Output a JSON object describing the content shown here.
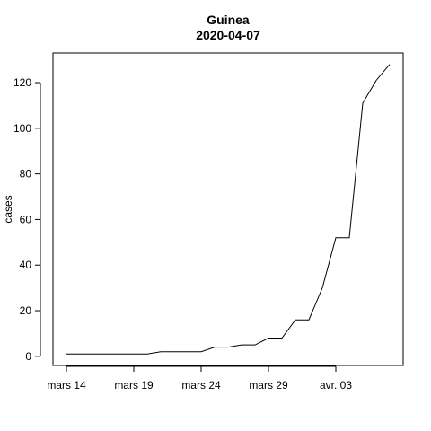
{
  "chart_data": {
    "type": "line",
    "title": "Guinea",
    "subtitle": "2020-04-07",
    "xlabel": "",
    "ylabel": "cases",
    "x_ticks": [
      "mars 14",
      "mars 19",
      "mars 24",
      "mars 29",
      "avr. 03"
    ],
    "y_ticks": [
      0,
      20,
      40,
      60,
      80,
      100,
      120
    ],
    "xlim": [
      "2020-03-13",
      "2020-04-08"
    ],
    "ylim": [
      -4,
      133
    ],
    "grid": false,
    "series": [
      {
        "color": "#000000",
        "x": [
          "2020-03-14",
          "2020-03-15",
          "2020-03-16",
          "2020-03-17",
          "2020-03-18",
          "2020-03-19",
          "2020-03-20",
          "2020-03-21",
          "2020-03-22",
          "2020-03-23",
          "2020-03-24",
          "2020-03-25",
          "2020-03-26",
          "2020-03-27",
          "2020-03-28",
          "2020-03-29",
          "2020-03-30",
          "2020-03-31",
          "2020-04-01",
          "2020-04-02",
          "2020-04-03",
          "2020-04-04",
          "2020-04-05",
          "2020-04-06",
          "2020-04-07"
        ],
        "values": [
          1,
          1,
          1,
          1,
          1,
          1,
          1,
          2,
          2,
          2,
          2,
          4,
          4,
          5,
          5,
          8,
          8,
          16,
          16,
          30,
          52,
          52,
          111,
          121,
          128
        ]
      }
    ]
  }
}
